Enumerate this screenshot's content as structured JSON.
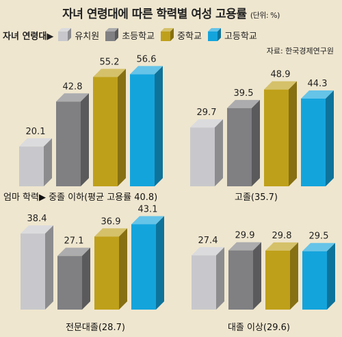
{
  "title": "자녀 연령대에 따른 학력별 여성 고용률",
  "unit": "(단위: %)",
  "legend_lead": "자녀 연령대",
  "source": "자료: 한국경제연구원",
  "colors": {
    "유치원": "#c8c8cc",
    "초등학교": "#808083",
    "중학교": "#bfa01a",
    "고등학교": "#14a4dc"
  },
  "chart_data": [
    {
      "type": "bar",
      "title": "엄마 학력▶ 중졸 이하(평균 고용률 40.8)",
      "categories": [
        "유치원",
        "초등학교",
        "중학교",
        "고등학교"
      ],
      "values": [
        20.1,
        42.8,
        55.2,
        56.6
      ]
    },
    {
      "type": "bar",
      "title": "고졸(35.7)",
      "categories": [
        "유치원",
        "초등학교",
        "중학교",
        "고등학교"
      ],
      "values": [
        29.7,
        39.5,
        48.9,
        44.3
      ]
    },
    {
      "type": "bar",
      "title": "전문대졸(28.7)",
      "categories": [
        "유치원",
        "초등학교",
        "중학교",
        "고등학교"
      ],
      "values": [
        38.4,
        27.1,
        36.9,
        43.1
      ]
    },
    {
      "type": "bar",
      "title": "대졸 이상(29.6)",
      "categories": [
        "유치원",
        "초등학교",
        "중학교",
        "고등학교"
      ],
      "values": [
        27.4,
        29.9,
        29.8,
        29.5
      ]
    }
  ]
}
